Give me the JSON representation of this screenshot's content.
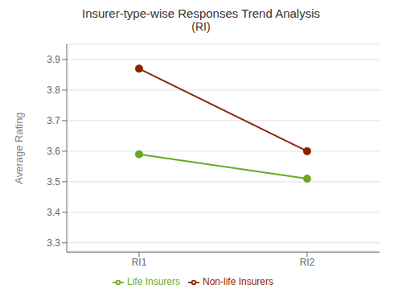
{
  "chart_data": {
    "type": "line",
    "title": "Insurer-type-wise Responses Trend Analysis",
    "subtitle": "(RI)",
    "y_label": "Average Rating",
    "categories": [
      "RI1",
      "RI2"
    ],
    "series": [
      {
        "name": "Life Insurers",
        "color": "#6aaa1e",
        "marker": "circle",
        "values": [
          3.59,
          3.51
        ]
      },
      {
        "name": "Non-life Insurers",
        "color": "#8b2500",
        "marker": "circle",
        "values": [
          3.87,
          3.6
        ]
      }
    ],
    "ylim": [
      3.27,
      3.95
    ],
    "yticks": [
      3.3,
      3.4,
      3.5,
      3.6,
      3.7,
      3.8,
      3.9
    ],
    "grid": "y",
    "legend": "bottom"
  }
}
